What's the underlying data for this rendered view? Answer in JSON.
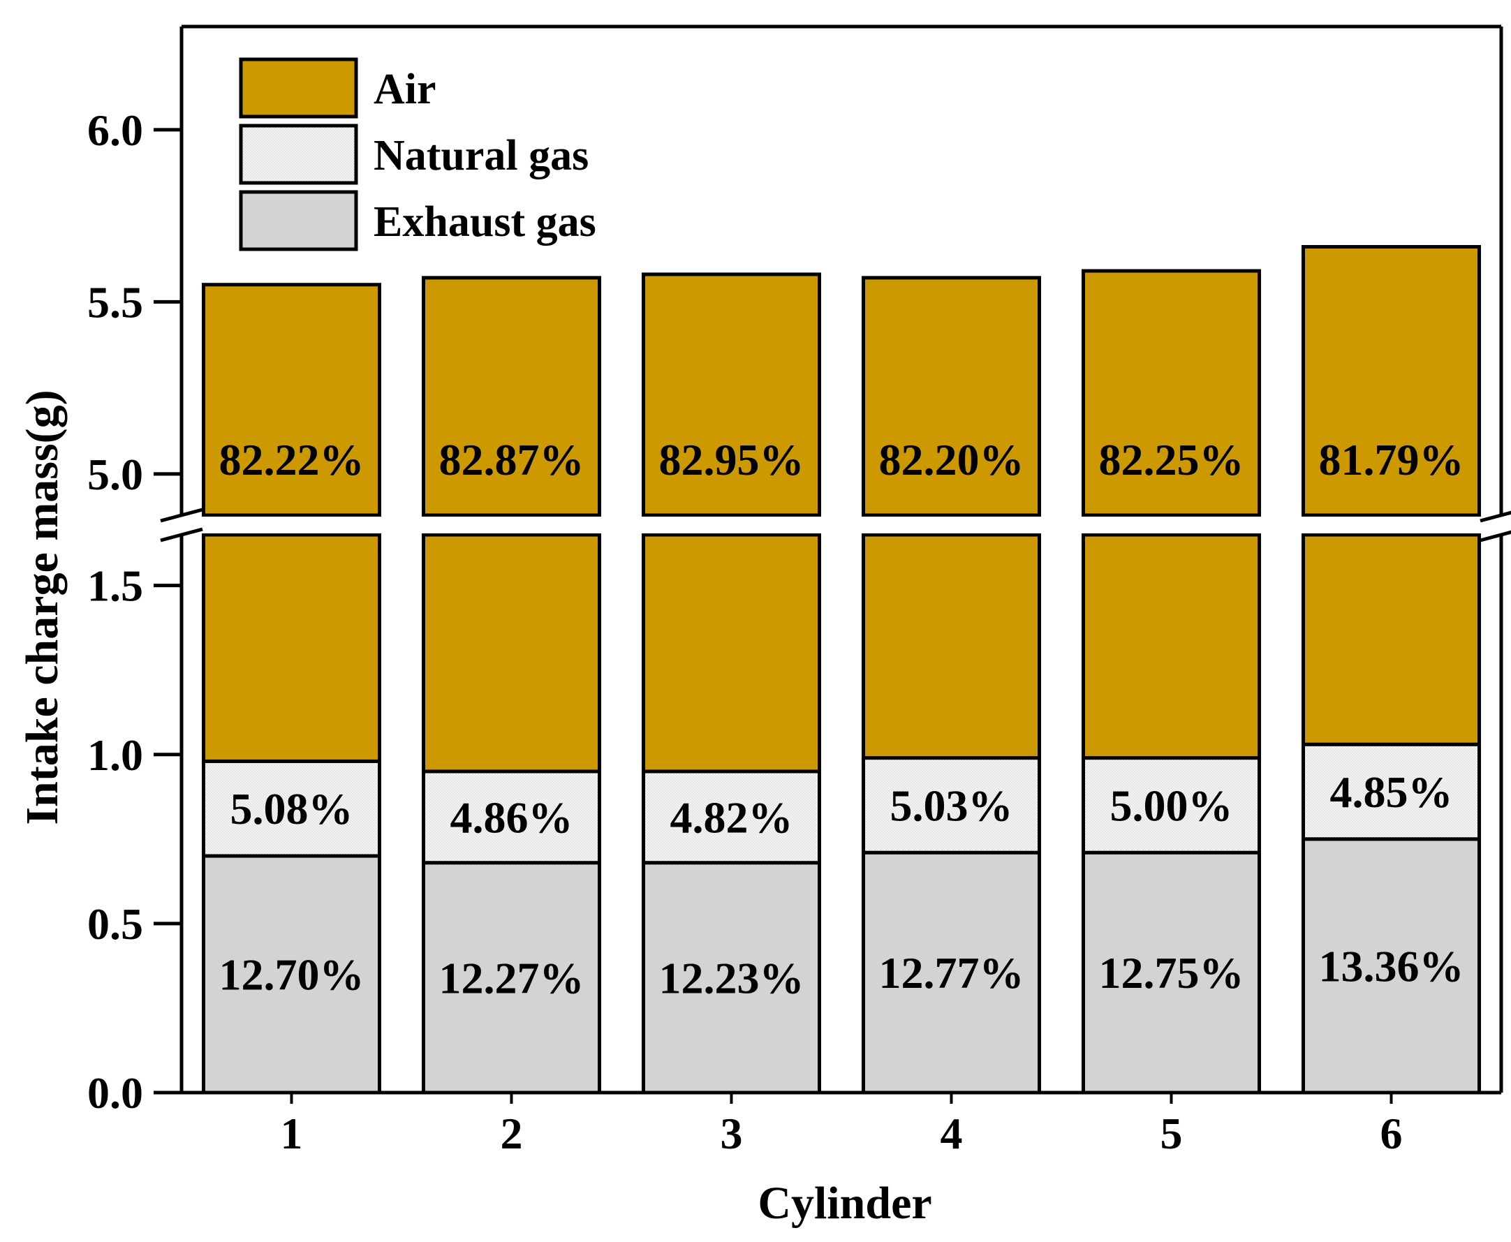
{
  "chart_data": {
    "type": "bar",
    "stacked": true,
    "title": "",
    "xlabel": "Cylinder",
    "ylabel": "Intake charge mass(g)",
    "categories": [
      "1",
      "2",
      "3",
      "4",
      "5",
      "6"
    ],
    "series": [
      {
        "name": "Exhaust gas",
        "color": "#d3d3d3",
        "values": [
          0.7,
          0.68,
          0.68,
          0.71,
          0.71,
          0.75
        ],
        "labels": [
          "12.70%",
          "12.27%",
          "12.23%",
          "12.77%",
          "12.75%",
          "13.36%"
        ]
      },
      {
        "name": "Natural gas",
        "color": "#f2f2f2",
        "values": [
          0.28,
          0.27,
          0.27,
          0.28,
          0.28,
          0.28
        ],
        "labels": [
          "5.08%",
          "4.86%",
          "4.82%",
          "5.03%",
          "5.00%",
          "4.85%"
        ]
      },
      {
        "name": "Air",
        "color": "#cc9900",
        "values": [
          4.57,
          4.62,
          4.63,
          4.58,
          4.6,
          4.63
        ],
        "labels": [
          "82.22%",
          "82.87%",
          "82.95%",
          "82.20%",
          "82.25%",
          "81.79%"
        ]
      }
    ],
    "totals": [
      5.55,
      5.57,
      5.58,
      5.57,
      5.59,
      5.66
    ],
    "y_axis_break": [
      1.65,
      4.88
    ],
    "ylim_lower": [
      0,
      1.65
    ],
    "ylim_upper": [
      4.88,
      6.3
    ],
    "yticks_lower": [
      "0.0",
      "0.5",
      "1.0",
      "1.5"
    ],
    "yticks_upper": [
      "5.0",
      "5.5",
      "6.0"
    ],
    "legend": {
      "position": "top-left",
      "order": [
        "Air",
        "Natural gas",
        "Exhaust gas"
      ]
    },
    "grid": false
  }
}
